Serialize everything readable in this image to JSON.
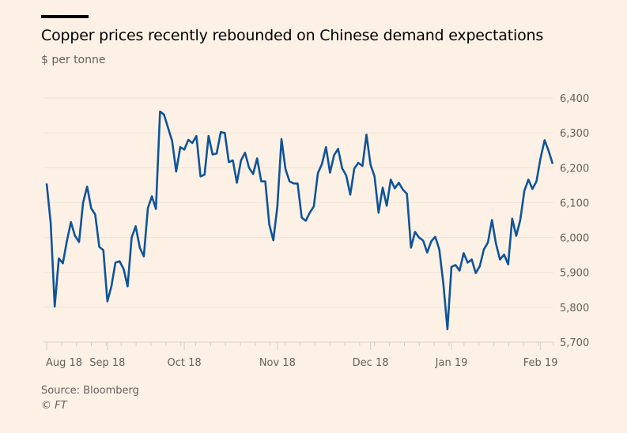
{
  "chart_data": {
    "type": "line",
    "title": "Copper prices recently rebounded on Chinese demand expectations",
    "subtitle": "$ per tonne",
    "xlabel": "",
    "ylabel": "$ per tonne",
    "ylim": [
      5700,
      6400
    ],
    "yticks": [
      5700,
      5800,
      5900,
      6000,
      6100,
      6200,
      6300,
      6400
    ],
    "ytick_labels": [
      "5,700",
      "5,800",
      "5,900",
      "6,000",
      "6,100",
      "6,200",
      "6,300",
      "6,400"
    ],
    "grid": true,
    "y_axis_side": "right",
    "xtick_labels": [
      "Aug 18",
      "Sep 18",
      "Oct 18",
      "Nov 18",
      "Dec 18",
      "Jan 19",
      "Feb 19"
    ],
    "xtick_index": [
      0,
      15,
      34,
      57,
      80,
      100,
      122
    ],
    "minor_tick_count": 34,
    "series": [
      {
        "name": "Copper price",
        "color": "#0f5499",
        "values": [
          6155,
          6042,
          5802,
          5940,
          5926,
          5990,
          6044,
          6005,
          5987,
          6100,
          6146,
          6084,
          6066,
          5973,
          5964,
          5817,
          5860,
          5928,
          5932,
          5910,
          5860,
          6000,
          6032,
          5971,
          5946,
          6084,
          6118,
          6082,
          6361,
          6352,
          6314,
          6277,
          6189,
          6259,
          6252,
          6280,
          6271,
          6291,
          6175,
          6180,
          6291,
          6238,
          6241,
          6302,
          6300,
          6216,
          6221,
          6157,
          6221,
          6243,
          6200,
          6182,
          6227,
          6161,
          6161,
          6037,
          5992,
          6089,
          6282,
          6196,
          6161,
          6155,
          6155,
          6057,
          6048,
          6071,
          6089,
          6184,
          6211,
          6259,
          6186,
          6236,
          6254,
          6198,
          6178,
          6123,
          6198,
          6214,
          6205,
          6295,
          6209,
          6175,
          6071,
          6143,
          6091,
          6166,
          6141,
          6157,
          6137,
          6125,
          5971,
          6016,
          6000,
          5991,
          5957,
          5989,
          6002,
          5966,
          5866,
          5737,
          5916,
          5921,
          5905,
          5955,
          5928,
          5937,
          5898,
          5918,
          5966,
          5986,
          6050,
          5982,
          5937,
          5951,
          5923,
          6054,
          6005,
          6050,
          6134,
          6166,
          6139,
          6161,
          6227,
          6279,
          6248,
          6211
        ]
      }
    ],
    "source": "Source: Bloomberg",
    "credit": "© FT"
  }
}
